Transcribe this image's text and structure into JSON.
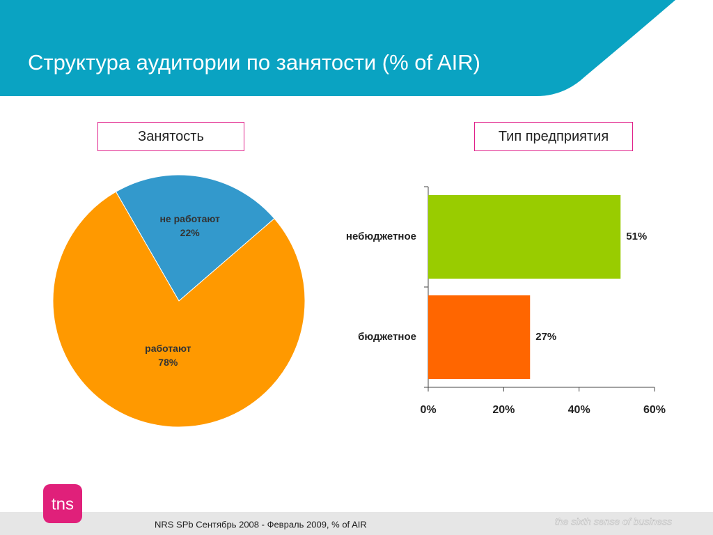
{
  "header": {
    "title": "Структура аудитории по занятости (% of AIR)"
  },
  "chart_data": [
    {
      "type": "pie",
      "title": "Занятость",
      "categories": [
        "не работают",
        "работают"
      ],
      "values": [
        22,
        78
      ],
      "value_labels": [
        "22%",
        "78%"
      ],
      "colors": [
        "#3399cc",
        "#ff9900"
      ]
    },
    {
      "type": "bar",
      "title": "Тип предприятия",
      "categories": [
        "небюджетное",
        "бюджетное"
      ],
      "values": [
        51,
        27
      ],
      "value_labels": [
        "51%",
        "27%"
      ],
      "colors": [
        "#99cc00",
        "#ff6600"
      ],
      "xlim": [
        0,
        60
      ],
      "xticks": [
        {
          "value": 0,
          "label": "0%"
        },
        {
          "value": 20,
          "label": "20%"
        },
        {
          "value": 40,
          "label": "40%"
        },
        {
          "value": 60,
          "label": "60%"
        }
      ]
    }
  ],
  "footer": {
    "source": "NRS SPb Сентябрь 2008 - Февраль 2009, % of AIR",
    "logo": "tns",
    "tagline": "the sixth sense of business"
  }
}
